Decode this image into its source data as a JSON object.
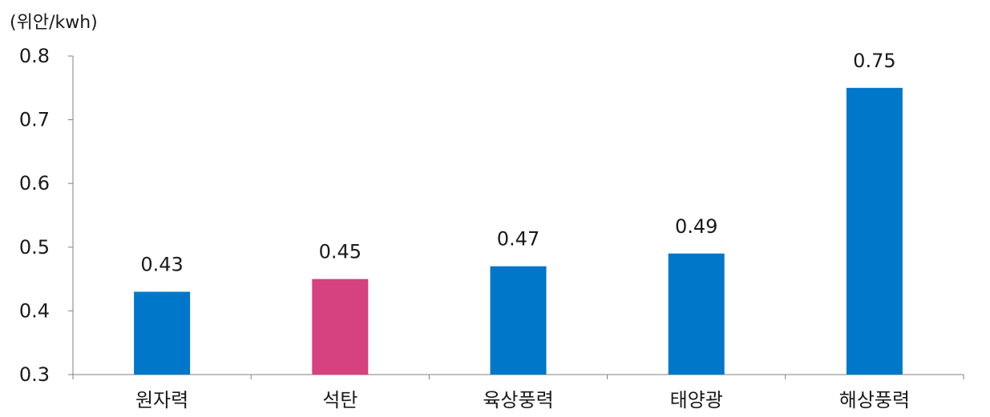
{
  "chart_data": {
    "type": "bar",
    "unit_label": "(위안/kwh)",
    "categories": [
      "원자력",
      "석탄",
      "육상풍력",
      "태양광",
      "해상풍력"
    ],
    "values": [
      0.43,
      0.45,
      0.47,
      0.49,
      0.75
    ],
    "data_labels": [
      "0.43",
      "0.45",
      "0.47",
      "0.49",
      "0.75"
    ],
    "bar_colors": [
      "#0077c8",
      "#d6417f",
      "#0077c8",
      "#0077c8",
      "#0077c8"
    ],
    "ylim": [
      0.3,
      0.8
    ],
    "yticks": [
      0.3,
      0.4,
      0.5,
      0.6,
      0.7,
      0.8
    ],
    "ytick_labels": [
      "0.3",
      "0.4",
      "0.5",
      "0.6",
      "0.7",
      "0.8"
    ],
    "grid": false,
    "legend": "none"
  }
}
